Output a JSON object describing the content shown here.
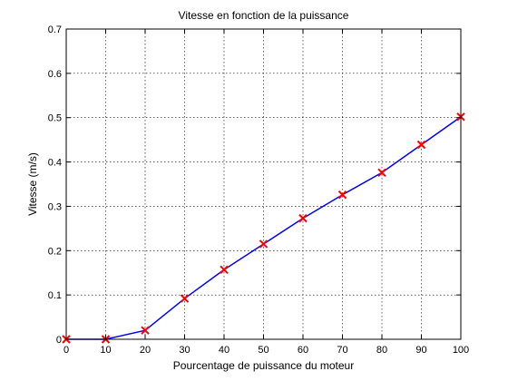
{
  "chart_data": {
    "type": "line",
    "title": "Vitesse en fonction de la puissance",
    "xlabel": "Pourcentage de puissance du moteur",
    "ylabel": "Vitesse (m/s)",
    "xlim": [
      0,
      100
    ],
    "ylim": [
      0,
      0.7
    ],
    "xticks": [
      0,
      10,
      20,
      30,
      40,
      50,
      60,
      70,
      80,
      90,
      100
    ],
    "yticks": [
      0,
      0.1,
      0.2,
      0.3,
      0.4,
      0.5,
      0.6,
      0.7
    ],
    "xtick_labels": [
      "0",
      "10",
      "20",
      "30",
      "40",
      "50",
      "60",
      "70",
      "80",
      "90",
      "100"
    ],
    "ytick_labels": [
      "0",
      "0.1",
      "0.2",
      "0.3",
      "0.4",
      "0.5",
      "0.6",
      "0.7"
    ],
    "grid": true,
    "grid_style": "dotted",
    "series": [
      {
        "x": [
          0,
          10,
          20,
          30,
          40,
          50,
          60,
          70,
          80,
          90,
          100
        ],
        "values": [
          0,
          0,
          0.02,
          0.092,
          0.157,
          0.215,
          0.273,
          0.326,
          0.376,
          0.439,
          0.502
        ],
        "line_color": "#0000ff",
        "marker": "x",
        "marker_color": "#ff0000"
      }
    ]
  }
}
